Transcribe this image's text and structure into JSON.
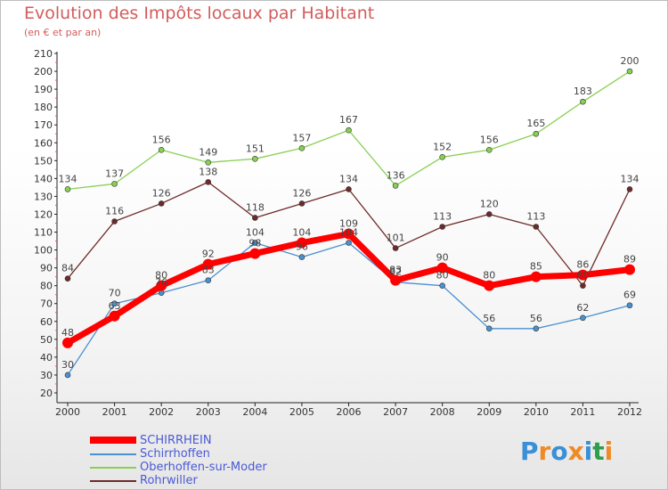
{
  "title": "Evolution des Impôts locaux par Habitant",
  "subtitle": "(en € et par an)",
  "chart_data": {
    "type": "line",
    "title": "Evolution des Impôts locaux par Habitant",
    "subtitle": "(en € et par an)",
    "categories": [
      "2000",
      "2001",
      "2002",
      "2003",
      "2004",
      "2005",
      "2006",
      "2007",
      "2008",
      "2009",
      "2010",
      "2011",
      "2012"
    ],
    "ylim": [
      20,
      210
    ],
    "yticks": [
      20,
      30,
      40,
      50,
      60,
      70,
      80,
      90,
      100,
      110,
      120,
      130,
      140,
      150,
      160,
      170,
      180,
      190,
      200,
      210
    ],
    "grid": false,
    "series": [
      {
        "name": "Oberhoffen-sur-Moder",
        "color": "#88d053",
        "values": [
          134,
          137,
          156,
          149,
          151,
          157,
          167,
          136,
          152,
          156,
          165,
          183,
          200
        ]
      },
      {
        "name": "Rohrwiller",
        "color": "#6e2a2a",
        "values": [
          84,
          116,
          126,
          138,
          118,
          126,
          134,
          101,
          113,
          120,
          113,
          80,
          134
        ]
      },
      {
        "name": "Schirrhoffen",
        "color": "#4b90cf",
        "values": [
          30,
          70,
          76,
          83,
          104,
          96,
          104,
          82,
          80,
          56,
          56,
          62,
          69
        ]
      },
      {
        "name": "SCHIRRHEIN",
        "color": "#ff0000",
        "values": [
          48,
          63,
          80,
          92,
          98,
          104,
          109,
          83,
          90,
          80,
          85,
          86,
          89
        ]
      }
    ],
    "point_labels": {
      "SCHIRRHEIN": [
        "48",
        "63",
        "80",
        "92",
        "98",
        "104",
        "109",
        "83",
        "90",
        "80",
        "85",
        "86",
        "89"
      ],
      "Schirrhoffen": [
        "30",
        "70",
        "76",
        "83",
        "104",
        "96",
        "104",
        "82",
        "80",
        "56",
        "56",
        "62",
        "69"
      ],
      "Oberhoffen-sur-Moder": [
        "134",
        "137",
        "156",
        "149",
        "151",
        "157",
        "167",
        "136",
        "152",
        "156",
        "165",
        "183",
        "200"
      ],
      "Rohrwiller": [
        "84",
        "116",
        "126",
        "138",
        "118",
        "126",
        "134",
        "101",
        "113",
        "120",
        "113",
        "80",
        "134"
      ]
    },
    "legend": [
      {
        "name": "SCHIRRHEIN",
        "color": "#ff0000"
      },
      {
        "name": "Schirrhoffen",
        "color": "#4b90cf"
      },
      {
        "name": "Oberhoffen-sur-Moder",
        "color": "#88d053"
      },
      {
        "name": "Rohrwiller",
        "color": "#6e2a2a"
      }
    ],
    "legend_position": "bottom-left"
  },
  "logo": {
    "letters": [
      "P",
      "r",
      "o",
      "x",
      "i",
      "t",
      "i"
    ],
    "colors": [
      "#3a8fd6",
      "#f08a24",
      "#3a8fd6",
      "#f08a24",
      "#3a8fd6",
      "#2e9e4a",
      "#f08a24"
    ]
  }
}
